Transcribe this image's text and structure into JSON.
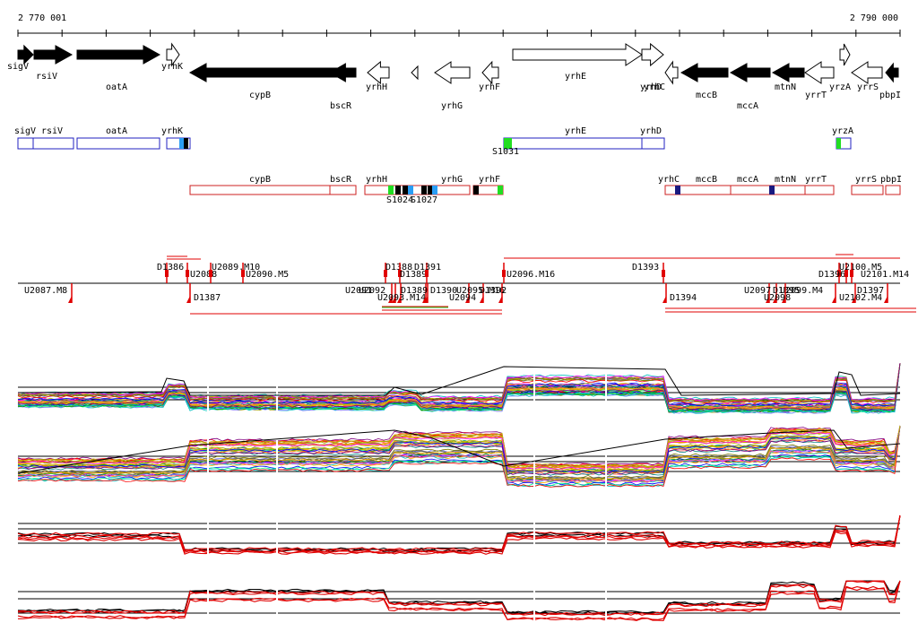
{
  "ruler": {
    "start_label": "2 770 001",
    "end_label": "2 790 000"
  },
  "genes": [
    {
      "name": "sigV",
      "strand": "+",
      "kind": "solid"
    },
    {
      "name": "rsiV",
      "strand": "+",
      "kind": "solid"
    },
    {
      "name": "oatA",
      "strand": "+",
      "kind": "solid"
    },
    {
      "name": "yrhK",
      "strand": "+",
      "kind": "open"
    },
    {
      "name": "cypB",
      "strand": "-",
      "kind": "solid"
    },
    {
      "name": "bscR",
      "strand": "-",
      "kind": "solid"
    },
    {
      "name": "yrhH",
      "strand": "-",
      "kind": "open"
    },
    {
      "name": "yrhG",
      "strand": "-",
      "kind": "open"
    },
    {
      "name": "yrhF",
      "strand": "-",
      "kind": "open"
    },
    {
      "name": "yrhE",
      "strand": "+",
      "kind": "open"
    },
    {
      "name": "yrhD",
      "strand": "+",
      "kind": "open"
    },
    {
      "name": "yrhC",
      "strand": "-",
      "kind": "open"
    },
    {
      "name": "mccB",
      "strand": "-",
      "kind": "solid"
    },
    {
      "name": "mccA",
      "strand": "-",
      "kind": "solid"
    },
    {
      "name": "mtnN",
      "strand": "-",
      "kind": "solid"
    },
    {
      "name": "yrrT",
      "strand": "-",
      "kind": "open"
    },
    {
      "name": "yrzA",
      "strand": "+",
      "kind": "open"
    },
    {
      "name": "yrrS",
      "strand": "-",
      "kind": "open"
    },
    {
      "name": "pbpI",
      "strand": "-",
      "kind": "solid"
    }
  ],
  "units_plus": [
    {
      "labels": [
        "sigV",
        "rsiV"
      ]
    },
    {
      "labels": [
        "oatA"
      ]
    },
    {
      "labels": [
        "yrhK"
      ]
    },
    {
      "labels": [
        "yrhE",
        "yrhD"
      ],
      "sig": "S1031"
    },
    {
      "labels": [
        "yrzA"
      ]
    }
  ],
  "units_minus": [
    {
      "labels": [
        "cypB",
        "bscR"
      ]
    },
    {
      "labels": [
        "yrhH",
        "yrhG"
      ],
      "sig1": "S1024",
      "sig2": "S1027"
    },
    {
      "labels": [
        "yrhF"
      ]
    },
    {
      "labels": [
        "yrhC",
        "mccB",
        "mccA",
        "mtnN",
        "yrrT"
      ]
    },
    {
      "labels": [
        "yrrS"
      ]
    },
    {
      "labels": [
        "pbpI"
      ]
    }
  ],
  "promoters_top": [
    "D1386",
    "U2088",
    "U2089.M10",
    "U2090.M5",
    "D1388",
    "D1389",
    "D1391",
    "U2096.M16",
    "D1393",
    "D1396",
    "U2100.M5",
    "U2101.M14"
  ],
  "promoters_bottom": [
    "U2087.M8",
    "D1387",
    "U2091",
    "U2092",
    "U2093.M14",
    "D1389",
    "D1390",
    "U2094",
    "U2095.M16",
    "D1392",
    "D1394",
    "U2097",
    "D1395",
    "U2098",
    "U2099.M4",
    "D1397",
    "U2102.M4"
  ],
  "colors": {
    "plus_unit": "#2020c0",
    "minus_unit": "#cc2020",
    "sigma_site": "#22dd22",
    "marker": "#e00000",
    "black_profile": "#000000",
    "red_profile": "#e00000"
  }
}
